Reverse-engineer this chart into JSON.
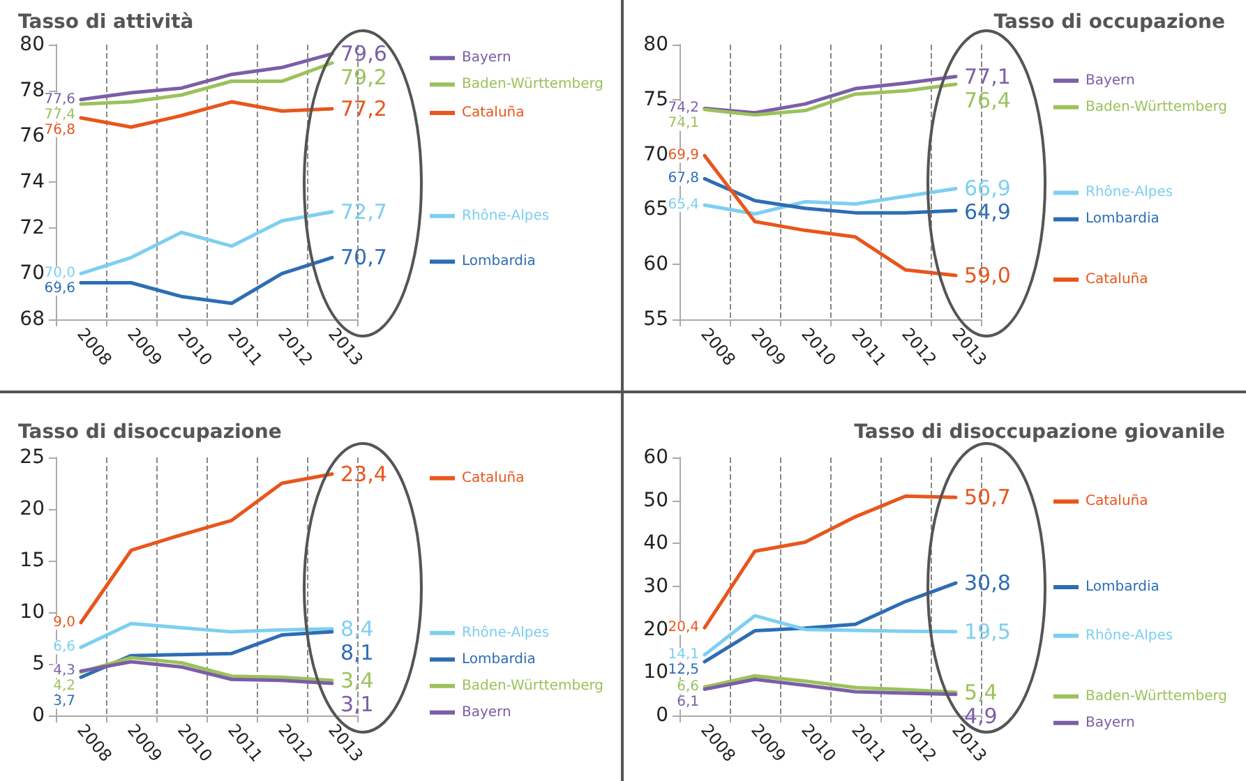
{
  "chart_data": [
    {
      "type": "line",
      "title": "Tasso di attività",
      "categories": [
        "2008",
        "2009",
        "2010",
        "2011",
        "2012",
        "2013"
      ],
      "ylim": [
        68,
        80
      ],
      "yticks": [
        68,
        70,
        72,
        74,
        76,
        78,
        80
      ],
      "grid": "x",
      "legend": "right",
      "marker": "none",
      "line_style": "solid",
      "series": [
        {
          "name": "Bayern",
          "color": "#7b5ea7",
          "values": [
            77.6,
            77.9,
            78.1,
            78.7,
            79.0,
            79.6
          ],
          "value_labels": [
            "77,6",
            null,
            null,
            null,
            null,
            "79,6"
          ]
        },
        {
          "name": "Baden-Württemberg",
          "color": "#9bc25a",
          "values": [
            77.4,
            77.5,
            77.8,
            78.4,
            78.4,
            79.2
          ],
          "value_labels": [
            "77,4",
            null,
            null,
            null,
            null,
            "79,2"
          ]
        },
        {
          "name": "Cataluña",
          "color": "#e8561c",
          "values": [
            76.8,
            76.4,
            76.9,
            77.5,
            77.1,
            77.2
          ],
          "value_labels": [
            "76,8",
            null,
            null,
            null,
            null,
            "77,2"
          ]
        },
        {
          "name": "Rhône-Alpes",
          "color": "#7dcff0",
          "values": [
            70.0,
            70.7,
            71.8,
            71.2,
            72.3,
            72.7
          ],
          "value_labels": [
            "70,0",
            null,
            null,
            null,
            null,
            "72,7"
          ]
        },
        {
          "name": "Lombardia",
          "color": "#2e6db5",
          "values": [
            69.6,
            69.6,
            69.0,
            68.7,
            70.0,
            70.7
          ],
          "value_labels": [
            "69,6",
            null,
            null,
            null,
            null,
            "70,7"
          ]
        }
      ]
    },
    {
      "type": "line",
      "title": "Tasso di occupazione",
      "categories": [
        "2008",
        "2009",
        "2010",
        "2011",
        "2012",
        "2013"
      ],
      "ylim": [
        55,
        80
      ],
      "yticks": [
        55,
        60,
        65,
        70,
        75,
        80
      ],
      "grid": "x",
      "legend": "right",
      "marker": "none",
      "line_style": "solid",
      "series": [
        {
          "name": "Bayern",
          "color": "#7b5ea7",
          "values": [
            74.2,
            73.8,
            74.6,
            76.0,
            76.5,
            77.1
          ],
          "value_labels": [
            "74,2",
            null,
            null,
            null,
            null,
            "77,1"
          ]
        },
        {
          "name": "Baden-Württemberg",
          "color": "#9bc25a",
          "values": [
            74.1,
            73.6,
            74.0,
            75.5,
            75.8,
            76.4
          ],
          "value_labels": [
            "74,1",
            null,
            null,
            null,
            null,
            "76,4"
          ]
        },
        {
          "name": "Rhône-Alpes",
          "color": "#7dcff0",
          "values": [
            65.4,
            64.6,
            65.7,
            65.5,
            66.2,
            66.9
          ],
          "value_labels": [
            "65,4",
            null,
            null,
            null,
            null,
            "66,9"
          ]
        },
        {
          "name": "Lombardia",
          "color": "#2e6db5",
          "values": [
            67.8,
            65.8,
            65.1,
            64.7,
            64.7,
            64.9
          ],
          "value_labels": [
            "67,8",
            null,
            null,
            null,
            null,
            "64,9"
          ]
        },
        {
          "name": "Cataluña",
          "color": "#e8561c",
          "values": [
            69.9,
            63.9,
            63.1,
            62.5,
            59.5,
            59.0
          ],
          "value_labels": [
            "69,9",
            null,
            null,
            null,
            null,
            "59,0"
          ]
        }
      ]
    },
    {
      "type": "line",
      "title": "Tasso di disoccupazione",
      "categories": [
        "2008",
        "2009",
        "2010",
        "2011",
        "2012",
        "2013"
      ],
      "ylim": [
        0,
        25
      ],
      "yticks": [
        0,
        5,
        10,
        15,
        20,
        25
      ],
      "grid": "x",
      "legend": "right",
      "marker": "none",
      "line_style": "solid",
      "series": [
        {
          "name": "Cataluña",
          "color": "#e8561c",
          "values": [
            9.0,
            16.0,
            17.5,
            18.9,
            22.5,
            23.4
          ],
          "value_labels": [
            "9,0",
            null,
            null,
            null,
            null,
            "23,4"
          ]
        },
        {
          "name": "Rhône-Alpes",
          "color": "#7dcff0",
          "values": [
            6.6,
            8.9,
            8.5,
            8.1,
            8.3,
            8.4
          ],
          "value_labels": [
            "6,6",
            null,
            null,
            null,
            null,
            "8,4"
          ]
        },
        {
          "name": "Lombardia",
          "color": "#2e6db5",
          "values": [
            3.7,
            5.8,
            5.9,
            6.0,
            7.8,
            8.1
          ],
          "value_labels": [
            "3,7",
            null,
            null,
            null,
            null,
            "8,1"
          ]
        },
        {
          "name": "Baden-Württemberg",
          "color": "#9bc25a",
          "values": [
            4.2,
            5.6,
            5.1,
            3.8,
            3.7,
            3.4
          ],
          "value_labels": [
            "4,2",
            null,
            null,
            null,
            null,
            "3,4"
          ]
        },
        {
          "name": "Bayern",
          "color": "#7b5ea7",
          "values": [
            4.3,
            5.2,
            4.7,
            3.5,
            3.4,
            3.1
          ],
          "value_labels": [
            "4,3",
            null,
            null,
            null,
            null,
            "3,1"
          ]
        }
      ]
    },
    {
      "type": "line",
      "title": "Tasso di disoccupazione giovanile",
      "categories": [
        "2008",
        "2009",
        "2010",
        "2011",
        "2012",
        "2013"
      ],
      "ylim": [
        0,
        60
      ],
      "yticks": [
        0,
        10,
        20,
        30,
        40,
        50,
        60
      ],
      "grid": "x",
      "legend": "right",
      "marker": "none",
      "line_style": "solid",
      "series": [
        {
          "name": "Cataluña",
          "color": "#e8561c",
          "values": [
            20.4,
            38.2,
            40.3,
            46.2,
            51.0,
            50.7
          ],
          "value_labels": [
            "20,4",
            null,
            null,
            null,
            null,
            "50,7"
          ]
        },
        {
          "name": "Lombardia",
          "color": "#2e6db5",
          "values": [
            12.5,
            19.7,
            20.3,
            21.2,
            26.5,
            30.8
          ],
          "value_labels": [
            "12,5",
            null,
            null,
            null,
            null,
            "30,8"
          ]
        },
        {
          "name": "Rhône-Alpes",
          "color": "#7dcff0",
          "values": [
            14.1,
            23.2,
            20.0,
            19.8,
            19.6,
            19.5
          ],
          "value_labels": [
            "14,1",
            null,
            null,
            null,
            null,
            "19,5"
          ]
        },
        {
          "name": "Baden-Württemberg",
          "color": "#9bc25a",
          "values": [
            6.6,
            9.2,
            8.0,
            6.5,
            6.0,
            5.4
          ],
          "value_labels": [
            "6,6",
            null,
            null,
            null,
            null,
            "5,4"
          ]
        },
        {
          "name": "Bayern",
          "color": "#7b5ea7",
          "values": [
            6.1,
            8.4,
            7.0,
            5.5,
            5.2,
            4.9
          ],
          "value_labels": [
            "6,1",
            null,
            null,
            null,
            null,
            "4,9"
          ]
        }
      ]
    }
  ]
}
